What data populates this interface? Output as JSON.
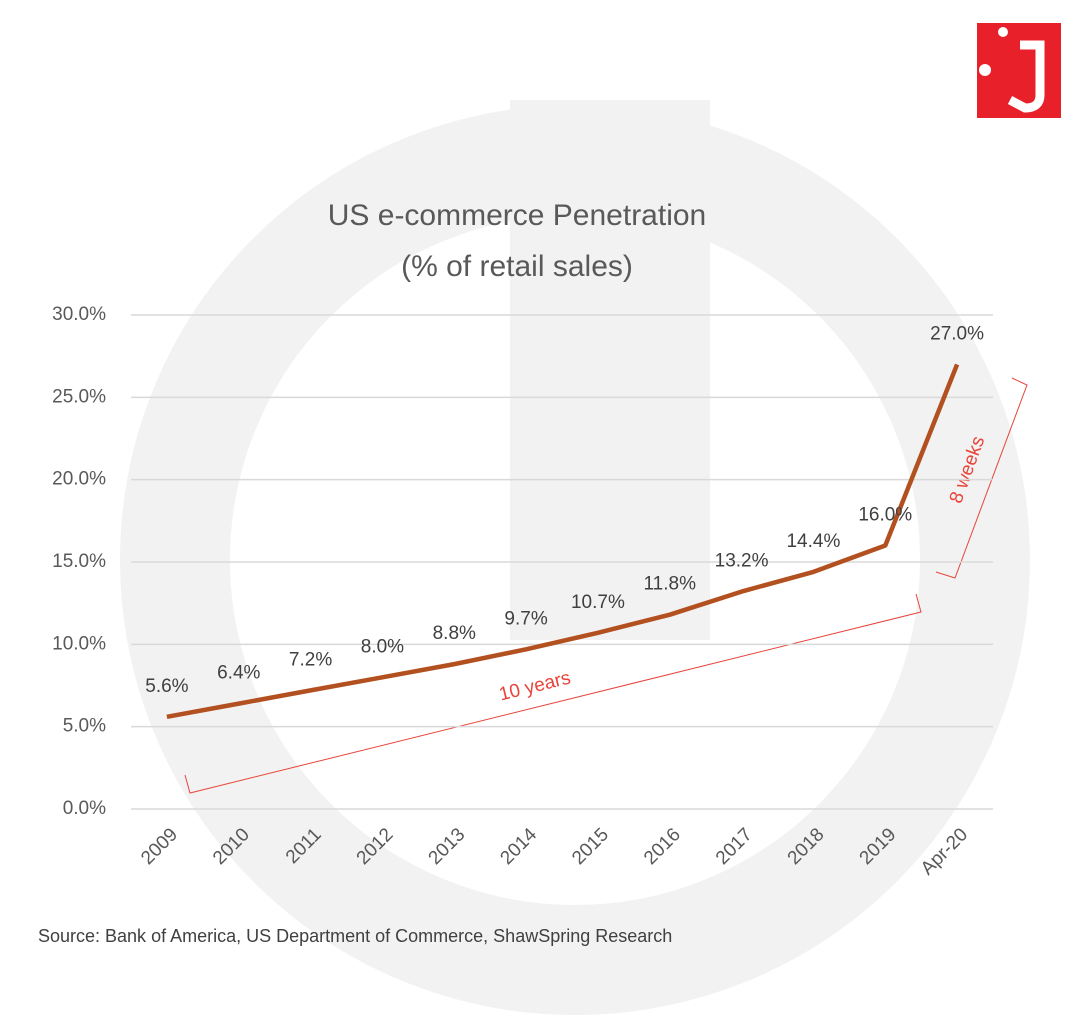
{
  "chart_data": {
    "type": "line",
    "title": "US e-commerce Penetration",
    "subtitle": "(% of retail sales)",
    "categories": [
      "2009",
      "2010",
      "2011",
      "2012",
      "2013",
      "2014",
      "2015",
      "2016",
      "2017",
      "2018",
      "2019",
      "Apr-20"
    ],
    "series": [
      {
        "name": "US e-commerce Penetration",
        "color": "#b3501f",
        "values": [
          5.6,
          6.4,
          7.2,
          8.0,
          8.8,
          9.7,
          10.7,
          11.8,
          13.2,
          14.4,
          16.0,
          27.0
        ],
        "value_labels": [
          "5.6%",
          "6.4%",
          "7.2%",
          "8.0%",
          "8.8%",
          "9.7%",
          "10.7%",
          "11.8%",
          "13.2%",
          "14.4%",
          "16.0%",
          "27.0%"
        ]
      }
    ],
    "ylim": [
      0,
      30
    ],
    "yticks": [
      {
        "value": 0,
        "label": "0.0%"
      },
      {
        "value": 5,
        "label": "5.0%"
      },
      {
        "value": 10,
        "label": "10.0%"
      },
      {
        "value": 15,
        "label": "15.0%"
      },
      {
        "value": 20,
        "label": "20.0%"
      },
      {
        "value": 25,
        "label": "25.0%"
      },
      {
        "value": 30,
        "label": "30.0%"
      }
    ],
    "grid": true,
    "annotations": [
      {
        "text": "10 years"
      },
      {
        "text": "8 weeks"
      }
    ],
    "source": "Source: Bank of America, US Department of Commerce, ShawSpring Research"
  }
}
